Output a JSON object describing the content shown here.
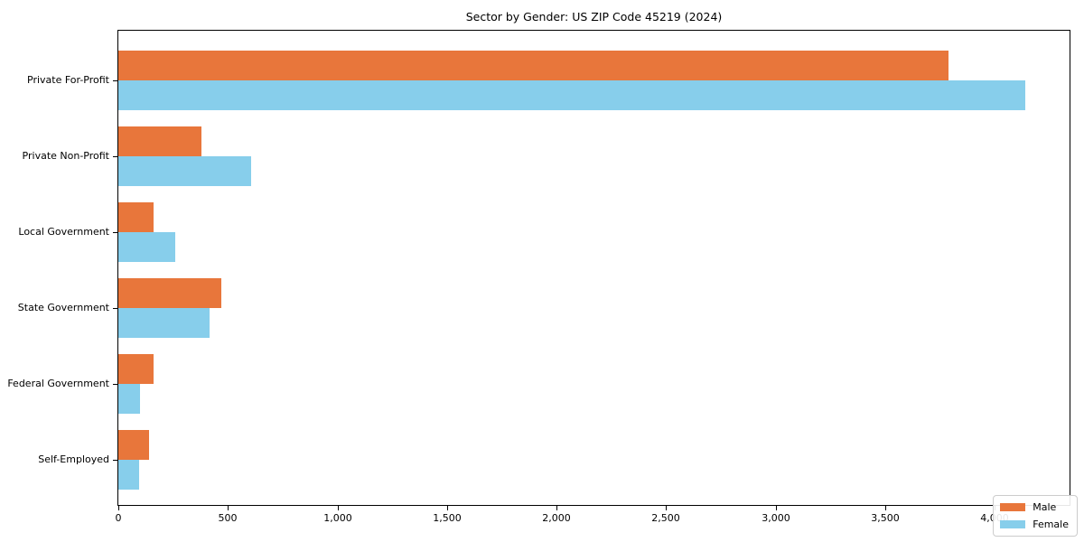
{
  "chart_data": {
    "type": "bar",
    "orientation": "horizontal",
    "title": "Sector by Gender: US ZIP Code 45219 (2024)",
    "categories": [
      "Private For-Profit",
      "Private Non-Profit",
      "Local Government",
      "State Government",
      "Federal Government",
      "Self-Employed"
    ],
    "series": [
      {
        "name": "Male",
        "color": "#E8763B",
        "values": [
          3790,
          380,
          160,
          470,
          160,
          140
        ]
      },
      {
        "name": "Female",
        "color": "#87CEEB",
        "values": [
          4140,
          605,
          260,
          415,
          100,
          95
        ]
      }
    ],
    "xlabel": "",
    "ylabel": "",
    "xlim": [
      0,
      4345
    ],
    "x_ticks": [
      0,
      500,
      1000,
      1500,
      2000,
      2500,
      3000,
      3500,
      4000
    ],
    "x_tick_labels": [
      "0",
      "500",
      "1,000",
      "1,500",
      "2,000",
      "2,500",
      "3,000",
      "3,500",
      "4,000"
    ],
    "grid": false,
    "legend": {
      "position": "lower right",
      "entries": [
        "Male",
        "Female"
      ]
    },
    "colors": {
      "spine": "#000000",
      "legend_border": "#cccccc",
      "background": "#ffffff"
    }
  }
}
